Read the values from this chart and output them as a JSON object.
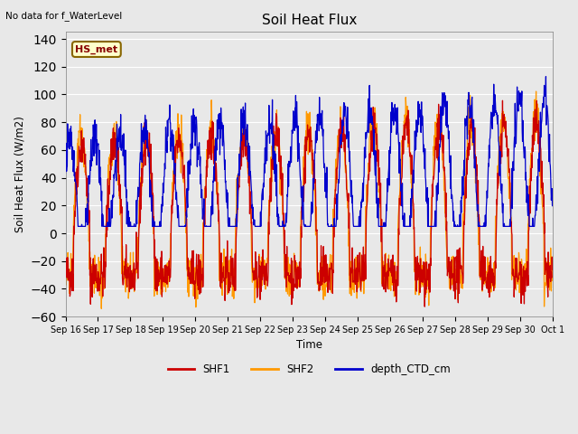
{
  "title": "Soil Heat Flux",
  "xlabel": "Time",
  "ylabel": "Soil Heat Flux (W/m2)",
  "ylim": [
    -60,
    145
  ],
  "yticks": [
    -60,
    -40,
    -20,
    0,
    20,
    40,
    60,
    80,
    100,
    120,
    140
  ],
  "top_left_text": "No data for f_WaterLevel",
  "annotation_box": "HS_met",
  "shf1_color": "#cc0000",
  "shf2_color": "#ff9900",
  "depth_color": "#0000cc",
  "legend_labels": [
    "SHF1",
    "SHF2",
    "depth_CTD_cm"
  ],
  "bg_color": "#e8e8e8",
  "fig_bg_color": "#e8e8e8",
  "days": 15,
  "pts_per_day": 96
}
